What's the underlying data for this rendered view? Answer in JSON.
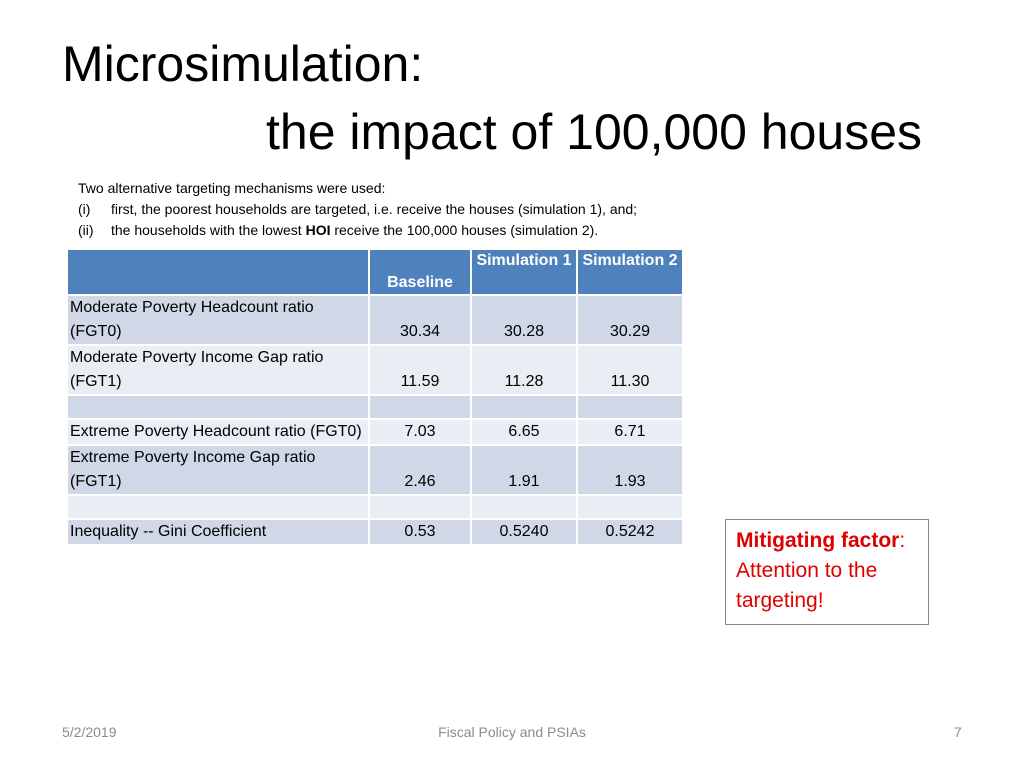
{
  "title": {
    "line1": "Microsimulation:",
    "line2": "the impact of 100,000 houses"
  },
  "intro": {
    "heading": "Two alternative targeting mechanisms were used:",
    "items": [
      {
        "num": "(i)",
        "text_before": "first, the poorest households are targeted, i.e. receive the houses (simulation 1), and;",
        "bold": "",
        "text_after": ""
      },
      {
        "num": "(ii)",
        "text_before": "the households with the lowest ",
        "bold": "HOI",
        "text_after": " receive the 100,000 houses (simulation 2)."
      }
    ]
  },
  "table": {
    "headers": {
      "baseline": "Baseline",
      "sim1": "Simulation 1",
      "sim2": "Simulation 2"
    },
    "rows": [
      {
        "label": "Moderate Poverty Headcount ratio (FGT0)",
        "baseline": "30.34",
        "sim1": "30.28",
        "sim2": "30.29"
      },
      {
        "label": "Moderate Poverty Income Gap ratio (FGT1)",
        "baseline": "11.59",
        "sim1": "11.28",
        "sim2": "11.30"
      },
      {
        "label": "",
        "baseline": "",
        "sim1": "",
        "sim2": ""
      },
      {
        "label": "Extreme Poverty Headcount ratio (FGT0)",
        "baseline": "7.03",
        "sim1": "6.65",
        "sim2": "6.71"
      },
      {
        "label": "Extreme Poverty Income Gap ratio (FGT1)",
        "baseline": "2.46",
        "sim1": "1.91",
        "sim2": "1.93"
      },
      {
        "label": "",
        "baseline": "",
        "sim1": "",
        "sim2": ""
      },
      {
        "label": "Inequality -- Gini Coefficient",
        "baseline": "0.53",
        "sim1": "0.5240",
        "sim2": "0.5242"
      }
    ]
  },
  "callout": {
    "label": "Mitigating factor",
    "colon": ":",
    "text": "Attention to the targeting!",
    "color": "#e00000"
  },
  "footer": {
    "date": "5/2/2019",
    "center": "Fiscal Policy and PSIAs",
    "page": "7"
  }
}
